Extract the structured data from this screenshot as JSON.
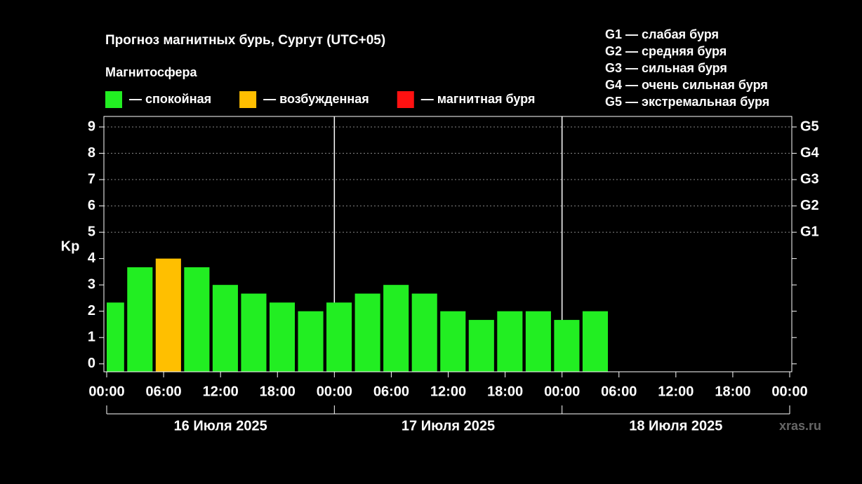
{
  "chart_data": {
    "type": "bar",
    "title": "Прогноз магнитных бурь, Сургут (UTC+05)",
    "legend_title": "Магнитосфера",
    "legend": [
      {
        "name": "— спокойная",
        "color": "#22ee22"
      },
      {
        "name": "— возбужденная",
        "color": "#ffbf00"
      },
      {
        "name": "— магнитная буря",
        "color": "#ff1111"
      }
    ],
    "storm_levels": [
      "G1 — слабая буря",
      "G2 — средняя буря",
      "G3 — сильная буря",
      "G4 — очень сильная буря",
      "G5 — экстремальная буря"
    ],
    "ylabel": "Kp",
    "watermark": "xras.ru",
    "days": [
      "16 Июля 2025",
      "17 Июля 2025",
      "18 Июля 2025"
    ],
    "x": [
      0.5,
      3.5,
      6.5,
      9.5,
      12.5,
      15.5,
      18.5,
      21.5,
      24.5,
      27.5,
      30.5,
      33.5,
      36.5,
      39.5,
      42.5,
      45.5,
      48.5,
      51.5
    ],
    "values": [
      2.33,
      3.67,
      4.0,
      3.67,
      3.0,
      2.67,
      2.33,
      2.0,
      2.33,
      2.67,
      3.0,
      2.67,
      2.0,
      1.67,
      2.0,
      2.0,
      1.67,
      2.0
    ],
    "colors": [
      "#22ee22",
      "#22ee22",
      "#ffbf00",
      "#22ee22",
      "#22ee22",
      "#22ee22",
      "#22ee22",
      "#22ee22",
      "#22ee22",
      "#22ee22",
      "#22ee22",
      "#22ee22",
      "#22ee22",
      "#22ee22",
      "#22ee22",
      "#22ee22",
      "#22ee22",
      "#22ee22"
    ],
    "xlim": [
      0,
      72
    ],
    "xticks": [
      {
        "value": 0,
        "label": "00:00"
      },
      {
        "value": 6,
        "label": "06:00"
      },
      {
        "value": 12,
        "label": "12:00"
      },
      {
        "value": 18,
        "label": "18:00"
      },
      {
        "value": 24,
        "label": "00:00"
      },
      {
        "value": 30,
        "label": "06:00"
      },
      {
        "value": 36,
        "label": "12:00"
      },
      {
        "value": 42,
        "label": "18:00"
      },
      {
        "value": 48,
        "label": "00:00"
      },
      {
        "value": 54,
        "label": "06:00"
      },
      {
        "value": 60,
        "label": "12:00"
      },
      {
        "value": 66,
        "label": "18:00"
      },
      {
        "value": 72,
        "label": "00:00"
      }
    ],
    "ylim": [
      -0.3,
      9.4
    ],
    "yticks": [
      0,
      1,
      2,
      3,
      4,
      5,
      6,
      7,
      8,
      9
    ],
    "y2ticks": [
      {
        "value": 5,
        "label": "G1"
      },
      {
        "value": 6,
        "label": "G2"
      },
      {
        "value": 7,
        "label": "G3"
      },
      {
        "value": 8,
        "label": "G4"
      },
      {
        "value": 9,
        "label": "G5"
      }
    ],
    "grid": true
  }
}
